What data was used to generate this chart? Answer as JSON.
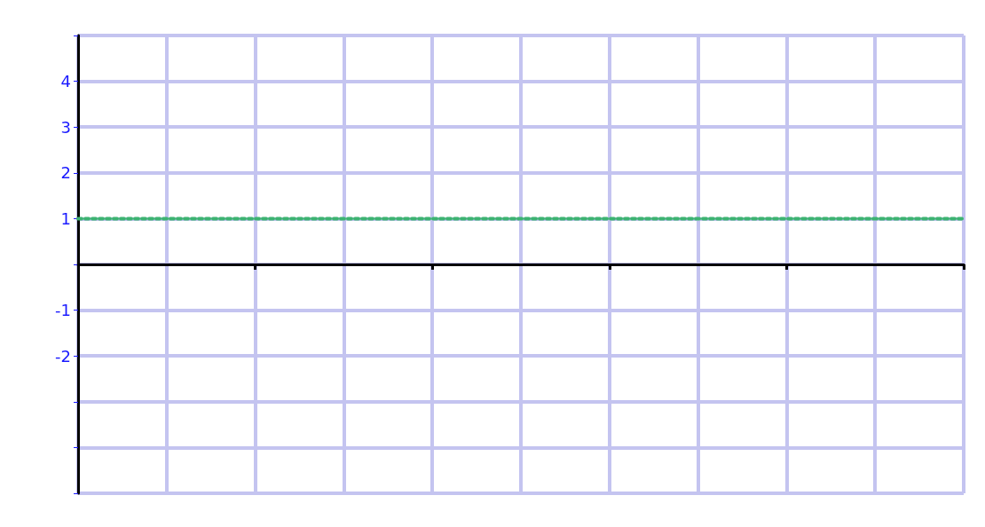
{
  "chart_data": {
    "type": "line",
    "categories": [
      null,
      null,
      null,
      null,
      null,
      null,
      null,
      null,
      null,
      null,
      null
    ],
    "series": [
      {
        "color": "#3cb371",
        "values": [
          1,
          1,
          1,
          1,
          1,
          1,
          1,
          1,
          1,
          1,
          1
        ]
      }
    ],
    "ylim": [
      -5,
      5
    ],
    "yticks": [
      {
        "value": -5,
        "label": null
      },
      {
        "value": -4,
        "label": null
      },
      {
        "value": -3,
        "label": null
      },
      -2,
      -1,
      {
        "value": 0,
        "label": null
      },
      1,
      2,
      3,
      4,
      {
        "value": 5,
        "label": null
      }
    ],
    "tick_labels": "y",
    "grid": true,
    "marker": "none",
    "line_style": "dotted"
  }
}
